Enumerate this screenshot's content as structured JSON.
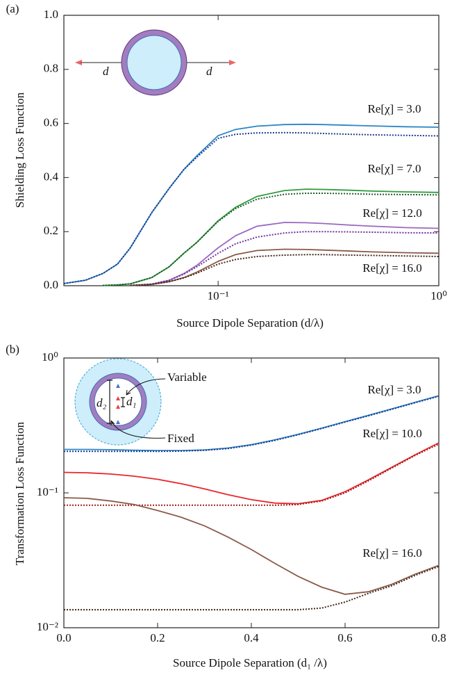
{
  "chart_data": [
    {
      "type": "line",
      "panel_label": "(a)",
      "xlabel": "Source Dipole Separation (d/λ)",
      "ylabel": "Shielding Loss Function",
      "xscale": "log",
      "yscale": "linear",
      "xlim": [
        0.02,
        1
      ],
      "ylim": [
        0,
        1
      ],
      "xticks": [
        {
          "value": 0.1,
          "label": "10⁻¹"
        },
        {
          "value": 1,
          "label": "10⁰"
        }
      ],
      "yticks": [
        {
          "value": 0,
          "label": "0.0"
        },
        0.2,
        0.4,
        0.6,
        0.8,
        {
          "value": 1,
          "label": "1.0"
        }
      ],
      "x": [
        0.02,
        0.025,
        0.03,
        0.035,
        0.04,
        0.05,
        0.06,
        0.07,
        0.08,
        0.1,
        0.12,
        0.15,
        0.2,
        0.25,
        0.3,
        0.4,
        0.5,
        0.7,
        1.0
      ],
      "series": [
        {
          "color": "#2b86c5",
          "dashed": false,
          "values": [
            0.008,
            0.02,
            0.045,
            0.08,
            0.14,
            0.27,
            0.36,
            0.43,
            0.48,
            0.555,
            0.578,
            0.59,
            0.596,
            0.597,
            0.596,
            0.593,
            0.591,
            0.588,
            0.586
          ]
        },
        {
          "color": "#1d3a8a",
          "dashed": true,
          "values": [
            0.008,
            0.02,
            0.045,
            0.08,
            0.14,
            0.27,
            0.36,
            0.43,
            0.475,
            0.545,
            0.56,
            0.565,
            0.566,
            0.565,
            0.563,
            0.56,
            0.558,
            0.556,
            0.554
          ]
        },
        {
          "color": "#2e9a3e",
          "dashed": false,
          "values": [
            null,
            null,
            0.001,
            0.003,
            0.007,
            0.03,
            0.07,
            0.12,
            0.16,
            0.24,
            0.29,
            0.33,
            0.352,
            0.357,
            0.356,
            0.353,
            0.35,
            0.347,
            0.345
          ]
        },
        {
          "color": "#1c5a2a",
          "dashed": true,
          "values": [
            null,
            null,
            0.001,
            0.003,
            0.007,
            0.03,
            0.07,
            0.12,
            0.16,
            0.238,
            0.285,
            0.32,
            0.338,
            0.342,
            0.342,
            0.34,
            0.338,
            0.337,
            0.336
          ]
        },
        {
          "color": "#9a68c0",
          "dashed": false,
          "values": [
            null,
            null,
            null,
            null,
            0.001,
            0.006,
            0.02,
            0.045,
            0.075,
            0.14,
            0.185,
            0.22,
            0.234,
            0.233,
            0.23,
            0.224,
            0.22,
            0.215,
            0.212
          ]
        },
        {
          "color": "#6a2f9a",
          "dashed": true,
          "values": [
            null,
            null,
            null,
            null,
            0.001,
            0.006,
            0.02,
            0.043,
            0.07,
            0.12,
            0.155,
            0.18,
            0.195,
            0.2,
            0.2,
            0.199,
            0.198,
            0.196,
            0.195
          ]
        },
        {
          "color": "#8b5a48",
          "dashed": false,
          "values": [
            null,
            null,
            null,
            null,
            0.001,
            0.005,
            0.015,
            0.03,
            0.05,
            0.09,
            0.115,
            0.13,
            0.135,
            0.134,
            0.132,
            0.128,
            0.125,
            0.122,
            0.12
          ]
        },
        {
          "color": "#3f2418",
          "dashed": true,
          "values": [
            null,
            null,
            null,
            null,
            0.001,
            0.005,
            0.015,
            0.029,
            0.046,
            0.08,
            0.097,
            0.108,
            0.113,
            0.115,
            0.115,
            0.113,
            0.112,
            0.11,
            0.108
          ]
        }
      ],
      "curve_labels": [
        "Re[χ] = 3.0",
        "Re[χ] = 7.0",
        "Re[χ] = 12.0",
        "Re[χ] = 16.0"
      ],
      "inset_labels": [
        "d",
        "d"
      ]
    },
    {
      "type": "line",
      "panel_label": "(b)",
      "xlabel": "Source Dipole Separation (d₁ /λ)",
      "ylabel": "Transformation Loss Function",
      "xscale": "linear",
      "yscale": "log",
      "xlim": [
        0,
        0.8
      ],
      "ylim": [
        0.01,
        1
      ],
      "xticks": [
        {
          "value": 0,
          "label": "0.0"
        },
        0.2,
        0.4,
        0.6,
        0.8
      ],
      "yticks": [
        {
          "value": 0.01,
          "label": "10⁻²"
        },
        {
          "value": 0.1,
          "label": "10⁻¹"
        },
        {
          "value": 1,
          "label": "10⁰"
        }
      ],
      "x": [
        0,
        0.05,
        0.1,
        0.15,
        0.2,
        0.25,
        0.3,
        0.35,
        0.4,
        0.45,
        0.5,
        0.55,
        0.6,
        0.65,
        0.7,
        0.75,
        0.8
      ],
      "series": [
        {
          "color": "#2b86c5",
          "dashed": false,
          "values": [
            0.21,
            0.21,
            0.209,
            0.207,
            0.206,
            0.206,
            0.208,
            0.215,
            0.228,
            0.247,
            0.272,
            0.302,
            0.337,
            0.376,
            0.42,
            0.47,
            0.525
          ]
        },
        {
          "color": "#1d3a8a",
          "dashed": true,
          "values": [
            0.203,
            0.203,
            0.203,
            0.203,
            0.203,
            0.204,
            0.207,
            0.213,
            0.226,
            0.245,
            0.27,
            0.3,
            0.335,
            0.373,
            0.417,
            0.467,
            0.52
          ]
        },
        {
          "color": "#e8262b",
          "dashed": false,
          "values": [
            0.142,
            0.141,
            0.138,
            0.133,
            0.126,
            0.117,
            0.107,
            0.097,
            0.089,
            0.084,
            0.083,
            0.088,
            0.102,
            0.125,
            0.155,
            0.192,
            0.235
          ]
        },
        {
          "color": "#a51a1a",
          "dashed": true,
          "values": [
            0.081,
            0.081,
            0.081,
            0.081,
            0.081,
            0.081,
            0.081,
            0.081,
            0.081,
            0.081,
            0.082,
            0.087,
            0.1,
            0.123,
            0.153,
            0.19,
            0.23
          ]
        },
        {
          "color": "#8b5a48",
          "dashed": false,
          "values": [
            0.092,
            0.091,
            0.087,
            0.082,
            0.074,
            0.066,
            0.057,
            0.047,
            0.038,
            0.03,
            0.024,
            0.02,
            0.0177,
            0.0185,
            0.021,
            0.025,
            0.029
          ]
        },
        {
          "color": "#3f2418",
          "dashed": true,
          "values": [
            0.0136,
            0.0136,
            0.0136,
            0.0136,
            0.0136,
            0.0136,
            0.0136,
            0.0136,
            0.0136,
            0.0136,
            0.0136,
            0.014,
            0.0155,
            0.018,
            0.0205,
            0.0245,
            0.0285
          ]
        }
      ],
      "curve_labels": [
        "Re[χ] = 3.0",
        "Re[χ] = 10.0",
        "Re[χ] = 16.0"
      ],
      "inset_labels": [
        "Variable",
        "Fixed",
        "d₂",
        "d₁"
      ]
    }
  ]
}
